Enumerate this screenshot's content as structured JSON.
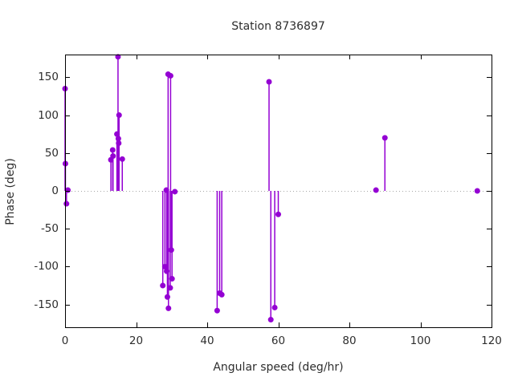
{
  "figure": {
    "background": "#ffffff",
    "text_color": "#2e2e2e",
    "border_color": "#000000",
    "zero_line_color": "#a8a8a8"
  },
  "chart_data": {
    "type": "scatter",
    "style": "impulses-with-points",
    "title": "Station 8736897",
    "xlabel": "Angular speed (deg/hr)",
    "ylabel": "Phase (deg)",
    "xlim": [
      0,
      120
    ],
    "ylim": [
      -180,
      180
    ],
    "xticks": [
      0,
      20,
      40,
      60,
      80,
      100,
      120
    ],
    "yticks": [
      -150,
      -100,
      -50,
      0,
      50,
      100,
      150
    ],
    "grid": false,
    "zero_line": true,
    "legend": "none",
    "series": [
      {
        "name": "phase",
        "color": "#9400d3",
        "marker": "filled-circle",
        "points": [
          [
            0.0,
            135
          ],
          [
            0.1,
            36
          ],
          [
            0.4,
            -17
          ],
          [
            0.8,
            1
          ],
          [
            12.9,
            41
          ],
          [
            13.4,
            54
          ],
          [
            13.5,
            46
          ],
          [
            14.6,
            75
          ],
          [
            14.9,
            177
          ],
          [
            15.0,
            69
          ],
          [
            15.1,
            63
          ],
          [
            15.2,
            100
          ],
          [
            16.1,
            42
          ],
          [
            27.5,
            -125
          ],
          [
            28.1,
            -100
          ],
          [
            28.5,
            1
          ],
          [
            28.6,
            -106
          ],
          [
            28.8,
            -140
          ],
          [
            29.0,
            154
          ],
          [
            29.1,
            -155
          ],
          [
            29.6,
            -128
          ],
          [
            29.7,
            152
          ],
          [
            29.9,
            -78
          ],
          [
            30.1,
            -116
          ],
          [
            30.9,
            -1
          ],
          [
            42.8,
            -158
          ],
          [
            43.5,
            -135
          ],
          [
            44.1,
            -137
          ],
          [
            57.4,
            144
          ],
          [
            57.9,
            -170
          ],
          [
            59.0,
            -154
          ],
          [
            60.0,
            -31
          ],
          [
            87.5,
            1
          ],
          [
            90.0,
            70
          ],
          [
            116.0,
            0
          ]
        ]
      }
    ]
  }
}
